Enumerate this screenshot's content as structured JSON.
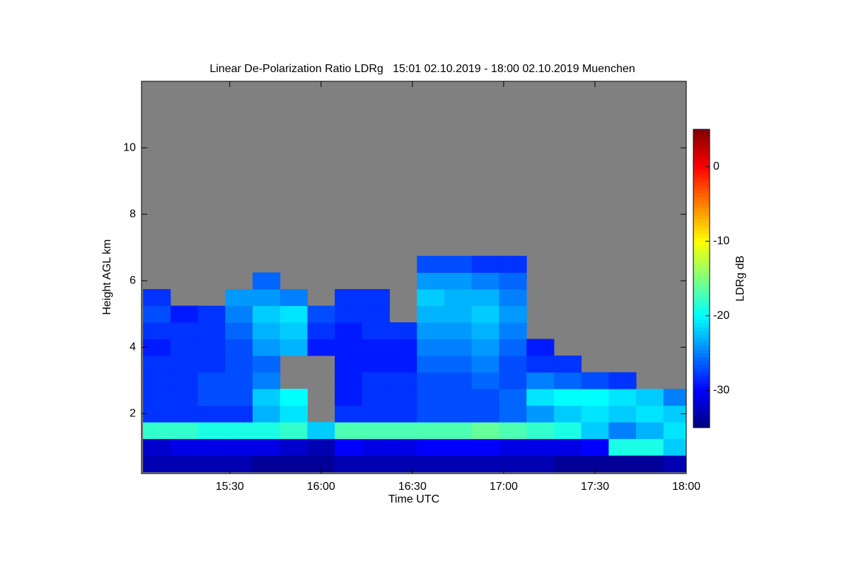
{
  "chart_data": {
    "type": "heatmap",
    "title": "Linear De-Polarization Ratio LDRg   15:01 02.10.2019 - 18:00 02.10.2019 Muenchen",
    "x_label": "Time UTC",
    "y_label": "Height AGL km",
    "colorbar_label": "LDRg dB",
    "colormap": "jet",
    "missing_color": "#808080",
    "xlim": [
      15.0167,
      18.0
    ],
    "ylim": [
      0.2,
      12
    ],
    "xticks": [
      {
        "value": 15.5,
        "label": "15:30"
      },
      {
        "value": 16,
        "label": "16:00"
      },
      {
        "value": 16.5,
        "label": "16:30"
      },
      {
        "value": 17,
        "label": "17:00"
      },
      {
        "value": 17.5,
        "label": "17:30"
      },
      {
        "value": 18,
        "label": "18:00"
      }
    ],
    "yticks": [
      2,
      4,
      6,
      8,
      10
    ],
    "clim": [
      -35,
      5
    ],
    "cticks": [
      -30,
      -20,
      -10,
      0
    ],
    "x": [
      15.1,
      15.25,
      15.4,
      15.55,
      15.7,
      15.85,
      16.0,
      16.15,
      16.3,
      16.45,
      16.6,
      16.75,
      16.9,
      17.05,
      17.2,
      17.35,
      17.5,
      17.65,
      17.8,
      17.95
    ],
    "y": [
      0.5,
      1.0,
      1.5,
      2.0,
      2.5,
      3.0,
      3.5,
      4.0,
      4.5,
      5.0,
      5.5,
      6.0,
      6.5
    ],
    "z": [
      [
        -33,
        -32,
        -18,
        -28,
        -28,
        -28,
        -28,
        -29,
        -28,
        -27,
        -28,
        null,
        null
      ],
      [
        -33,
        -31,
        -18,
        -28,
        -28,
        -28,
        -28,
        -28,
        -28,
        -29,
        null,
        null,
        null
      ],
      [
        -33,
        -31,
        -19,
        -28,
        -27,
        -27,
        -28,
        -28,
        -28,
        -28,
        null,
        null,
        null
      ],
      [
        -33,
        -31,
        -19,
        -28,
        -27,
        -27,
        -27,
        -27,
        -26,
        -25,
        -24,
        null,
        null
      ],
      [
        -34,
        -31,
        -19,
        -23,
        -22,
        -25,
        -26,
        -24,
        -23,
        -22,
        -24,
        -26,
        null
      ],
      [
        -34,
        -32,
        -18,
        -21,
        -20,
        null,
        null,
        -23,
        -22,
        -21,
        -25,
        null,
        null
      ],
      [
        -34,
        -33,
        -22,
        null,
        null,
        null,
        null,
        -29,
        -28,
        -27,
        null,
        null,
        null
      ],
      [
        -33,
        -30,
        -17,
        -28,
        -29,
        -29,
        -29,
        -29,
        -29,
        -28,
        -28,
        null,
        null
      ],
      [
        -33,
        -31,
        -17,
        -28,
        -28,
        -28,
        -29,
        -29,
        -28,
        -28,
        -28,
        null,
        null
      ],
      [
        -33,
        -31,
        -17,
        -28,
        -28,
        -28,
        -29,
        -29,
        -28,
        null,
        null,
        null,
        null
      ],
      [
        -33,
        -30,
        -17,
        -27,
        -27,
        -27,
        -26,
        -25,
        -24,
        -23,
        -22,
        -24,
        -27
      ],
      [
        -33,
        -30,
        -17,
        -27,
        -27,
        -27,
        -26,
        -25,
        -24,
        -23,
        -23,
        -24,
        -27
      ],
      [
        -33,
        -30,
        -16,
        -27,
        -27,
        -26,
        -25,
        -24,
        -23,
        -22,
        -23,
        -25,
        -28
      ],
      [
        -33,
        -31,
        -17,
        -26,
        -26,
        -27,
        -27,
        -26,
        -25,
        -24,
        -25,
        -26,
        -28
      ],
      [
        -33,
        -31,
        -18,
        -24,
        -21,
        -25,
        -28,
        -29,
        null,
        null,
        null,
        null,
        null
      ],
      [
        -34,
        -31,
        -19,
        -22,
        -20,
        -26,
        -28,
        null,
        null,
        null,
        null,
        null,
        null
      ],
      [
        -34,
        -30,
        -22,
        -21,
        -20,
        -27,
        null,
        null,
        null,
        null,
        null,
        null,
        null
      ],
      [
        -34,
        -19,
        -25,
        -22,
        -21,
        -28,
        null,
        null,
        null,
        null,
        null,
        null,
        null
      ],
      [
        -34,
        -19,
        -23,
        -21,
        -22,
        null,
        null,
        null,
        null,
        null,
        null,
        null,
        null
      ],
      [
        -33,
        -22,
        -21,
        -22,
        -25,
        null,
        null,
        null,
        null,
        null,
        null,
        null,
        null
      ]
    ]
  }
}
